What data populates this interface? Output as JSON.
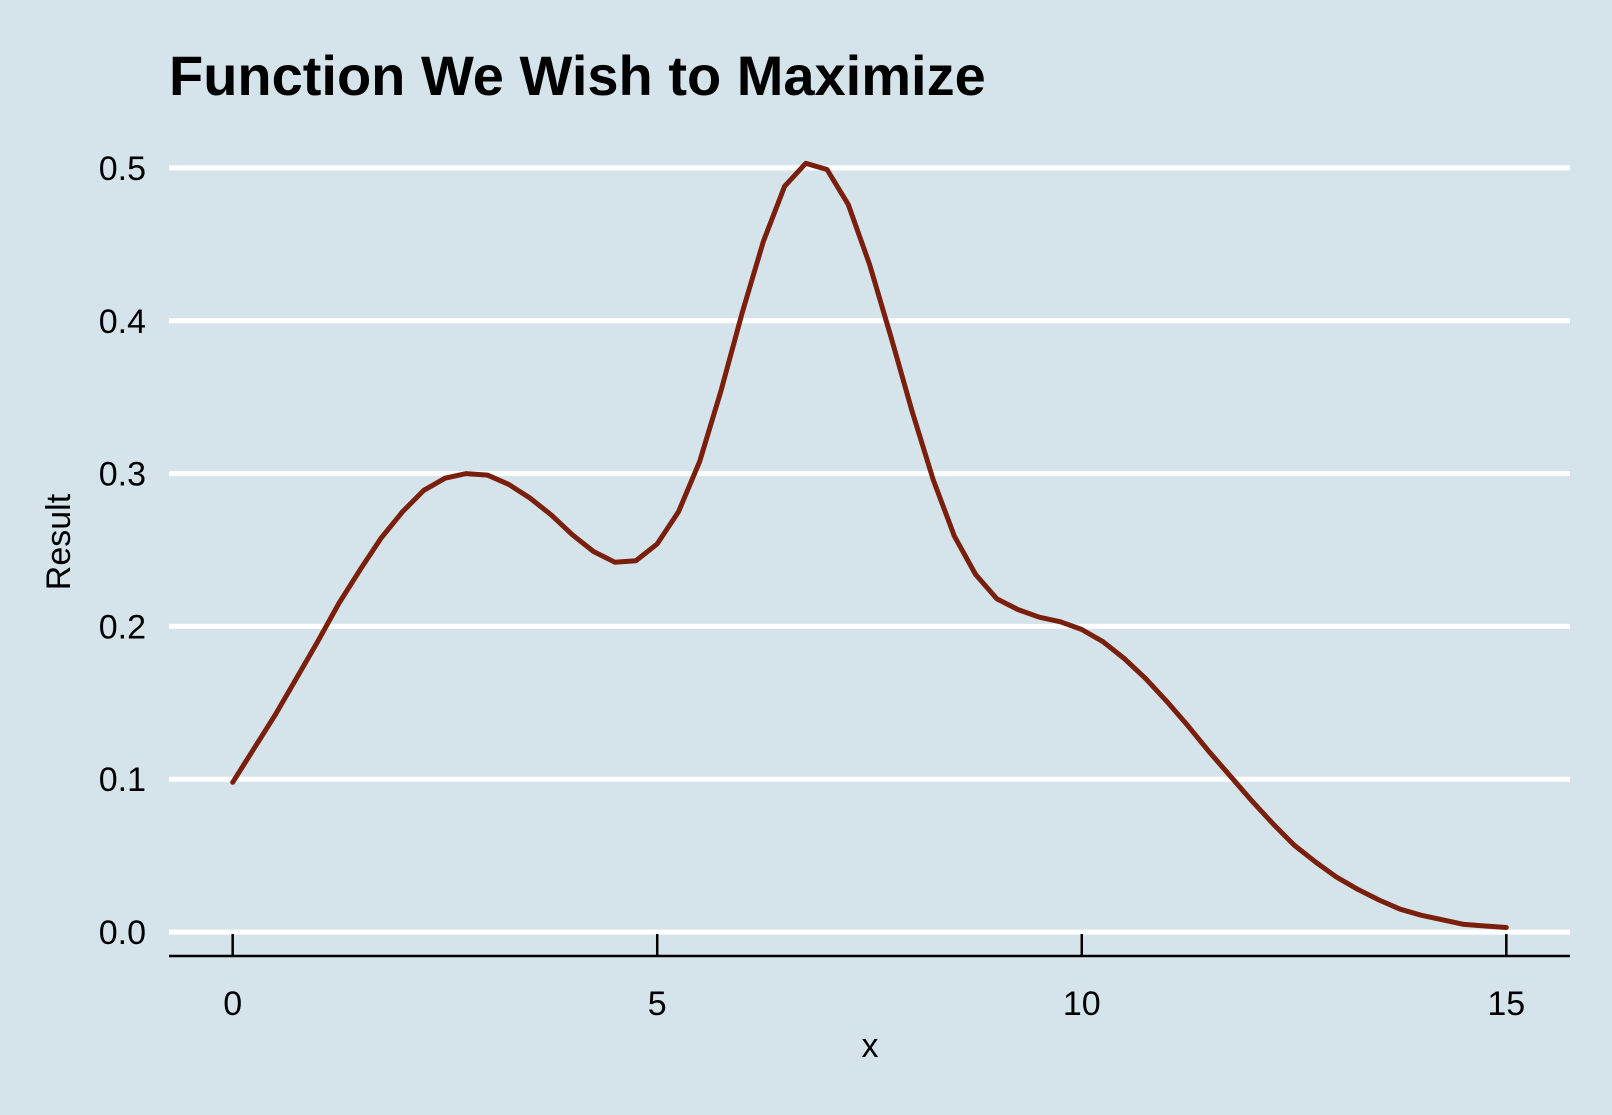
{
  "chart_data": {
    "type": "line",
    "title": "Function We Wish to Maximize",
    "xlabel": "x",
    "ylabel": "Result",
    "xlim": [
      -0.75,
      15.75
    ],
    "ylim": [
      -0.015,
      0.515
    ],
    "x_ticks": [
      0,
      5,
      10,
      15
    ],
    "x_tick_labels": [
      "0",
      "5",
      "10",
      "15"
    ],
    "y_ticks": [
      0.0,
      0.1,
      0.2,
      0.3,
      0.4,
      0.5
    ],
    "y_tick_labels": [
      "0.0",
      "0.1",
      "0.2",
      "0.3",
      "0.4",
      "0.5"
    ],
    "grid": "horizontal major",
    "colors": {
      "background": "#d5e4eb",
      "grid": "#ffffff",
      "line": "#7a1f0c",
      "axis": "#000000"
    },
    "series": [
      {
        "x": [
          0,
          0.25,
          0.5,
          0.75,
          1.0,
          1.25,
          1.5,
          1.75,
          2.0,
          2.25,
          2.5,
          2.75,
          3.0,
          3.25,
          3.5,
          3.75,
          4.0,
          4.25,
          4.5,
          4.75,
          5.0,
          5.25,
          5.5,
          5.75,
          6.0,
          6.25,
          6.5,
          6.75,
          7.0,
          7.25,
          7.5,
          7.75,
          8.0,
          8.25,
          8.5,
          8.75,
          9.0,
          9.25,
          9.5,
          9.75,
          10.0,
          10.25,
          10.5,
          10.75,
          11.0,
          11.25,
          11.5,
          11.75,
          12.0,
          12.25,
          12.5,
          12.75,
          13.0,
          13.25,
          13.5,
          13.75,
          14.0,
          14.25,
          14.5,
          14.75,
          15.0
        ],
        "values": [
          0.098,
          0.12,
          0.142,
          0.166,
          0.19,
          0.215,
          0.237,
          0.258,
          0.275,
          0.289,
          0.297,
          0.3,
          0.299,
          0.293,
          0.284,
          0.273,
          0.26,
          0.249,
          0.242,
          0.243,
          0.254,
          0.275,
          0.308,
          0.354,
          0.405,
          0.452,
          0.488,
          0.503,
          0.499,
          0.476,
          0.437,
          0.39,
          0.341,
          0.296,
          0.259,
          0.234,
          0.218,
          0.211,
          0.206,
          0.203,
          0.198,
          0.19,
          0.179,
          0.166,
          0.151,
          0.135,
          0.118,
          0.102,
          0.086,
          0.071,
          0.057,
          0.046,
          0.036,
          0.028,
          0.021,
          0.015,
          0.011,
          0.008,
          0.005,
          0.004,
          0.003
        ]
      }
    ]
  }
}
